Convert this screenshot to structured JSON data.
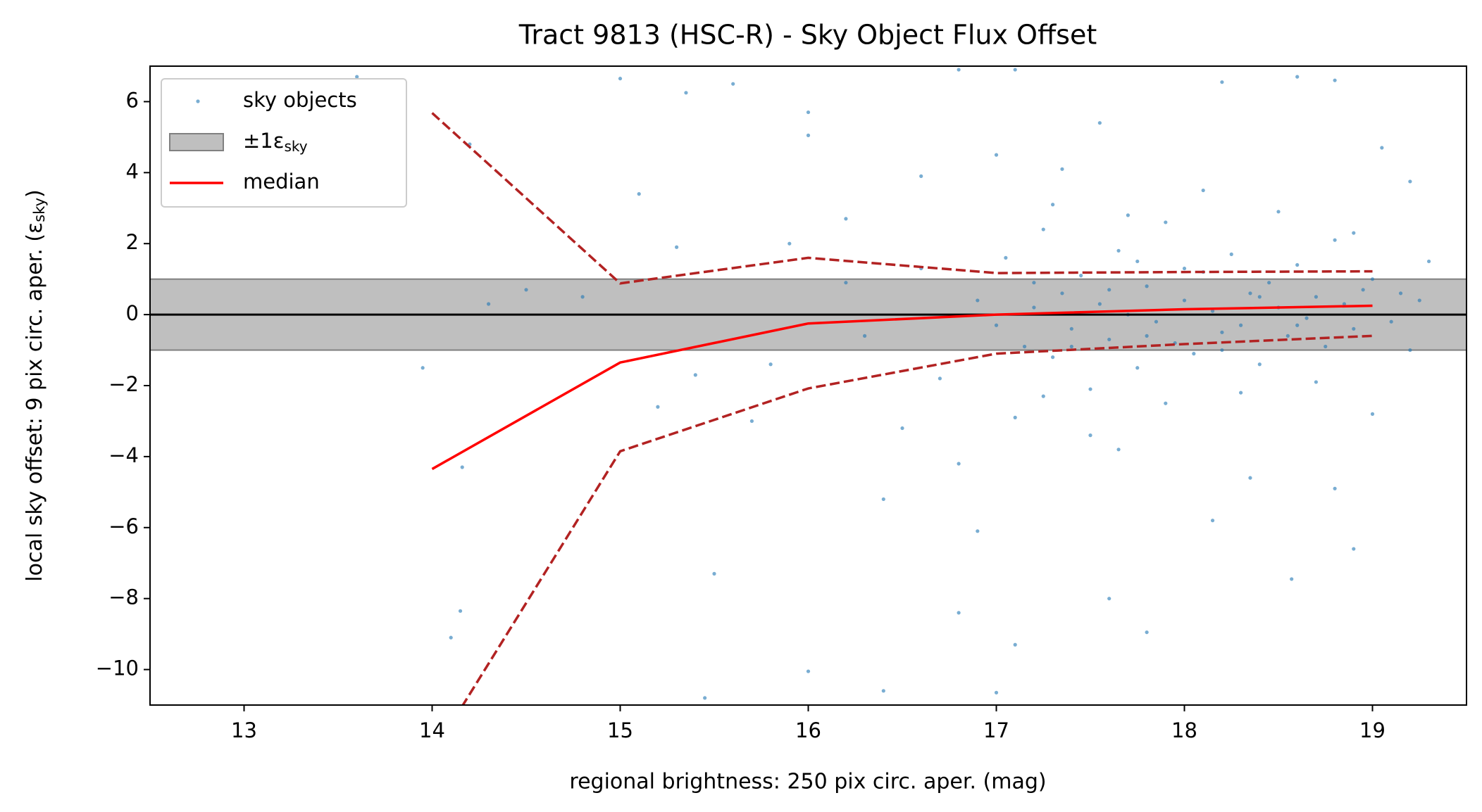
{
  "chart_data": {
    "type": "scatter",
    "title": "Tract 9813 (HSC-R) - Sky Object Flux Offset",
    "xlabel": "regional brightness: 250 pix circ. aper. (mag)",
    "ylabel": {
      "text": "local sky offset: 9 pix circ. aper. (ε",
      "subscript": "sky",
      "close": ")"
    },
    "xlim": [
      12.5,
      19.5
    ],
    "ylim": [
      -11,
      7
    ],
    "xticks": [
      13,
      14,
      15,
      16,
      17,
      18,
      19
    ],
    "yticks": [
      {
        "value": -10,
        "label": "−10"
      },
      {
        "value": -8,
        "label": "−8"
      },
      {
        "value": -6,
        "label": "−6"
      },
      {
        "value": -4,
        "label": "−4"
      },
      {
        "value": -2,
        "label": "−2"
      },
      0,
      2,
      4,
      6
    ],
    "legend": "upper left",
    "scatter": {
      "name": "sky objects",
      "color": "#1f77b4",
      "x": [
        13.6,
        14.2,
        14.3,
        14.5,
        14.1,
        14.15,
        14.16,
        13.95,
        15.0,
        15.35,
        15.1,
        15.6,
        15.5,
        15.45,
        16.0,
        16.0,
        16.0,
        16.4,
        17.0,
        17.1,
        16.8,
        17.8,
        18.57,
        17.6,
        18.9,
        17.3,
        16.8,
        17.1,
        18.2,
        18.6,
        18.8,
        19.05,
        19.2,
        19.3,
        19.2,
        19.0,
        14.8,
        15.2,
        15.3,
        15.8,
        15.9,
        16.2,
        16.3,
        16.5,
        16.6,
        16.7,
        16.9,
        17.0,
        17.05,
        17.15,
        17.2,
        17.25,
        17.3,
        17.35,
        17.4,
        17.45,
        17.5,
        17.55,
        17.6,
        17.65,
        17.7,
        17.75,
        17.8,
        17.85,
        17.9,
        17.95,
        18.0,
        18.05,
        18.1,
        18.15,
        18.2,
        18.25,
        18.3,
        18.35,
        18.4,
        18.45,
        18.5,
        18.55,
        18.6,
        18.65,
        18.7,
        18.75,
        18.8,
        18.85,
        18.9,
        18.95,
        19.0,
        19.1,
        19.15,
        19.25,
        17.1,
        17.3,
        17.5,
        17.7,
        17.9,
        18.1,
        18.3,
        18.5,
        18.7,
        18.9,
        17.2,
        17.4,
        17.6,
        17.8,
        18.0,
        18.2,
        18.4,
        18.6,
        16.6,
        16.8,
        17.0,
        16.4,
        16.2,
        15.7,
        15.4,
        16.9,
        17.35,
        17.65,
        18.35,
        18.8,
        17.55,
        18.15,
        17.25,
        17.75
      ],
      "y": [
        6.7,
        4.8,
        0.3,
        0.7,
        -9.1,
        -8.35,
        -4.3,
        -1.5,
        6.65,
        6.25,
        3.4,
        6.5,
        -7.3,
        -10.8,
        -10.05,
        5.05,
        5.7,
        -10.6,
        -10.65,
        -9.3,
        -8.4,
        -8.95,
        -7.45,
        -8.0,
        -6.6,
        7.2,
        6.9,
        6.9,
        6.55,
        6.7,
        6.6,
        4.7,
        3.75,
        1.5,
        -1.0,
        -2.8,
        0.5,
        -2.6,
        1.9,
        -1.4,
        2.0,
        0.9,
        -0.6,
        -3.2,
        1.3,
        -1.8,
        0.4,
        -0.3,
        1.6,
        -0.9,
        0.2,
        2.4,
        -1.2,
        0.6,
        -0.4,
        1.1,
        -2.1,
        0.3,
        -0.7,
        1.8,
        0.0,
        -1.5,
        0.8,
        -0.2,
        2.6,
        -0.8,
        0.4,
        -1.1,
        1.2,
        0.1,
        -0.5,
        1.7,
        -0.3,
        0.6,
        -1.4,
        0.9,
        0.2,
        -0.6,
        1.4,
        -0.1,
        0.5,
        -0.9,
        2.1,
        0.3,
        -0.4,
        0.7,
        1.0,
        -0.2,
        0.6,
        0.4,
        -2.9,
        3.1,
        -3.4,
        2.8,
        -2.5,
        3.5,
        -2.2,
        2.9,
        -1.9,
        2.3,
        0.9,
        -0.9,
        0.7,
        -0.6,
        1.3,
        -1.0,
        0.5,
        -0.3,
        3.9,
        -4.2,
        4.5,
        -5.2,
        2.7,
        -3.0,
        -1.7,
        -6.1,
        4.1,
        -3.8,
        -4.6,
        -4.9,
        5.4,
        -5.8,
        -2.3,
        1.5
      ]
    },
    "band": {
      "label": "±1ε",
      "label_subscript": "sky",
      "color": "#808080",
      "ylim": [
        -1,
        1
      ]
    },
    "hline": 0,
    "lines": [
      {
        "name": "median",
        "color": "#ff0000",
        "x": [
          14,
          15,
          16,
          17,
          18,
          19
        ],
        "values": [
          -4.35,
          -1.35,
          -0.25,
          0.0,
          0.15,
          0.25
        ]
      }
    ],
    "quantile_lines": [
      {
        "color": "#b22222",
        "x": [
          14,
          15,
          16,
          17,
          18,
          19
        ],
        "values": [
          5.68,
          0.88,
          1.6,
          1.17,
          1.2,
          1.22
        ]
      },
      {
        "color": "#b22222",
        "x": [
          14,
          15,
          16,
          17,
          18,
          19
        ],
        "values": [
          -12.4,
          -3.85,
          -2.08,
          -1.1,
          -0.83,
          -0.6
        ]
      }
    ]
  }
}
